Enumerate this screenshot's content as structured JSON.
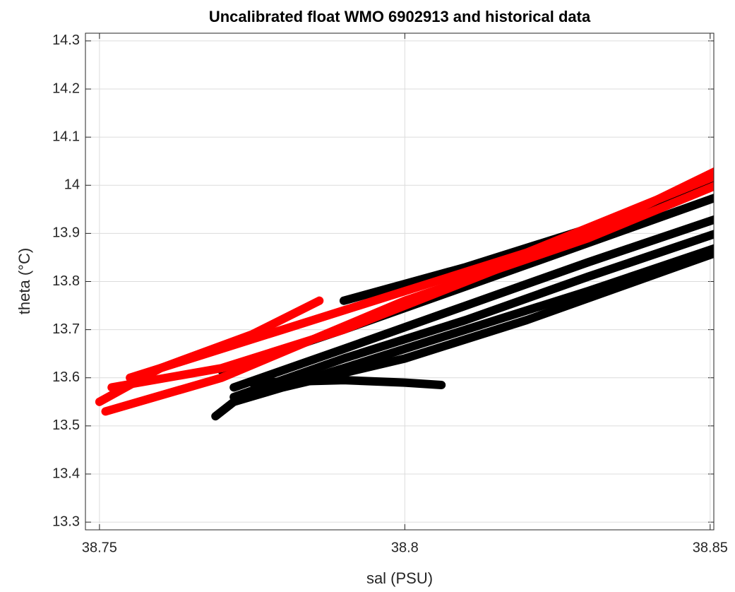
{
  "chart_data": {
    "type": "line",
    "title": "Uncalibrated float WMO 6902913 and historical data",
    "xlabel": "sal (PSU)",
    "ylabel": "theta (°C)",
    "xlim": [
      38.7477,
      38.8506
    ],
    "xticks": [
      38.75,
      38.8,
      38.85
    ],
    "ylim": [
      13.284,
      14.316
    ],
    "yticks": [
      13.3,
      13.4,
      13.5,
      13.6,
      13.7,
      13.8,
      13.9,
      14,
      14.1,
      14.2,
      14.3
    ],
    "grid": true,
    "series": [
      {
        "color": "#000000",
        "x": [
          38.77,
          38.79,
          38.81,
          38.83,
          38.851
        ],
        "values": [
          13.615,
          13.7,
          13.79,
          13.88,
          13.975
        ]
      },
      {
        "color": "#000000",
        "x": [
          38.772,
          38.79,
          38.81,
          38.83,
          38.851
        ],
        "values": [
          13.58,
          13.66,
          13.75,
          13.84,
          13.93
        ]
      },
      {
        "color": "#000000",
        "x": [
          38.772,
          38.79,
          38.81,
          38.83,
          38.851
        ],
        "values": [
          13.56,
          13.64,
          13.72,
          13.81,
          13.9
        ]
      },
      {
        "color": "#000000",
        "x": [
          38.772,
          38.79,
          38.81,
          38.83,
          38.851
        ],
        "values": [
          13.55,
          13.62,
          13.7,
          13.78,
          13.87
        ]
      },
      {
        "color": "#000000",
        "x": [
          38.775,
          38.79,
          38.8,
          38.806
        ],
        "values": [
          13.59,
          13.595,
          13.59,
          13.585
        ]
      },
      {
        "color": "#000000",
        "x": [
          38.769,
          38.772,
          38.78,
          38.8,
          38.82,
          38.851
        ],
        "values": [
          13.52,
          13.55,
          13.58,
          13.64,
          13.72,
          13.86
        ]
      },
      {
        "color": "#000000",
        "x": [
          38.79,
          38.81,
          38.83,
          38.851
        ],
        "values": [
          13.76,
          13.83,
          13.91,
          14.01
        ]
      },
      {
        "color": "#ff0000",
        "x": [
          38.75,
          38.76,
          38.775,
          38.786
        ],
        "values": [
          13.55,
          13.62,
          13.69,
          13.76
        ]
      },
      {
        "color": "#ff0000",
        "x": [
          38.752,
          38.77,
          38.79,
          38.81,
          38.83,
          38.851
        ],
        "values": [
          13.58,
          13.62,
          13.7,
          13.8,
          13.9,
          14.03
        ]
      },
      {
        "color": "#ff0000",
        "x": [
          38.751,
          38.77,
          38.8,
          38.83,
          38.851
        ],
        "values": [
          13.53,
          13.6,
          13.76,
          13.89,
          14.0
        ]
      },
      {
        "color": "#ff0000",
        "x": [
          38.755,
          38.78,
          38.82,
          38.851
        ],
        "values": [
          13.6,
          13.7,
          13.86,
          14.02
        ]
      }
    ]
  }
}
